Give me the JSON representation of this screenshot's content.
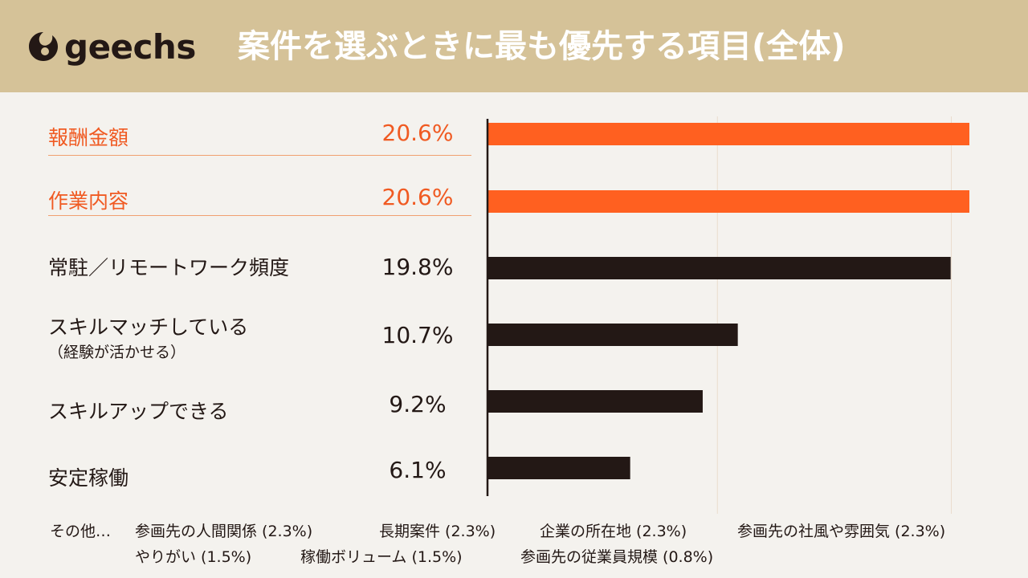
{
  "header": {
    "logo_text": "geechs",
    "title": "案件を選ぶときに最も優先する項目(全体)",
    "bg_color": "#d5c298"
  },
  "colors": {
    "highlight": "#f05a22",
    "bar_highlight": "#ff6020",
    "bar_default": "#231815"
  },
  "chart_data": {
    "type": "bar",
    "orientation": "horizontal",
    "title": "案件を選ぶときに最も優先する項目(全体)",
    "categories": [
      "報酬金額",
      "作業内容",
      "常駐／リモートワーク頻度",
      "スキルマッチしている",
      "スキルアップできる",
      "安定稼働"
    ],
    "sublabels": [
      "",
      "",
      "",
      "（経験が活かせる）",
      "",
      ""
    ],
    "values": [
      20.6,
      20.6,
      19.8,
      10.7,
      9.2,
      6.1
    ],
    "value_labels": [
      "20.6%",
      "20.6%",
      "19.8%",
      "10.7%",
      "9.2%",
      "6.1%"
    ],
    "highlighted": [
      true,
      true,
      false,
      false,
      false,
      false
    ],
    "unit": "%",
    "xlim": [
      0,
      21
    ],
    "gridlines": [
      10,
      20
    ]
  },
  "footnote": {
    "prefix": "その他…",
    "items": [
      "参画先の人間関係 (2.3%)",
      "長期案件 (2.3%)",
      "企業の所在地 (2.3%)",
      "参画先の社風や雰囲気 (2.3%)",
      "やりがい (1.5%)",
      "稼働ボリューム (1.5%)",
      "参画先の従業員規模 (0.8%)"
    ]
  }
}
